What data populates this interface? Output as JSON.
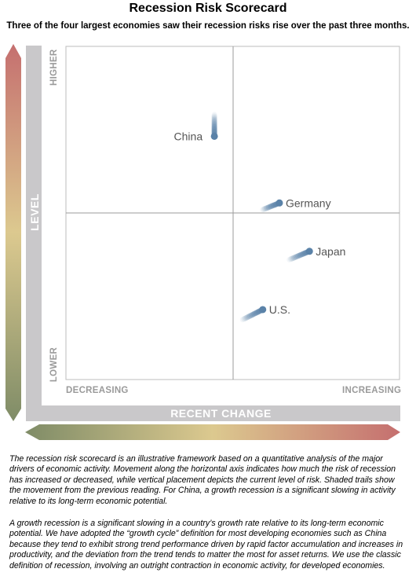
{
  "title": "Recession Risk Scorecard",
  "subtitle": "Three of the four largest economies saw their recession risks rise over the past three months.",
  "colors": {
    "frame": "#c9c8ca",
    "gridline": "#9b9b9b",
    "point": "#5a82a8",
    "tick_label": "#9a9a9a",
    "gradient_red": "#c56f6f",
    "gradient_tan": "#dcc98f",
    "gradient_green": "#7f8c67"
  },
  "chart_data": {
    "type": "scatter",
    "title": "Recession Risk Scorecard",
    "xlabel": "RECENT CHANGE",
    "ylabel": "LEVEL",
    "x_ticks": [
      "DECREASING",
      "INCREASING"
    ],
    "y_ticks": [
      "LOWER",
      "HIGHER"
    ],
    "xlim": [
      -1,
      1
    ],
    "ylim": [
      -1,
      1
    ],
    "grid": "quadrant lines at 0",
    "note": "Shaded trails show the movement from the previous reading.",
    "points": [
      {
        "label": "China",
        "x": -0.11,
        "y": 0.46,
        "trail_from": [
          -0.11,
          0.59
        ]
      },
      {
        "label": "Germany",
        "x": 0.28,
        "y": 0.06,
        "trail_from": [
          0.18,
          0.02
        ]
      },
      {
        "label": "Japan",
        "x": 0.46,
        "y": -0.23,
        "trail_from": [
          0.34,
          -0.28
        ]
      },
      {
        "label": "U.S.",
        "x": 0.18,
        "y": -0.58,
        "trail_from": [
          0.06,
          -0.64
        ]
      }
    ]
  },
  "footnotes": [
    "The recession risk scorecard is an illustrative framework based on a quantitative analysis of the major drivers of economic activity. Movement along the horizontal axis indicates how much the risk of recession has increased or decreased, while vertical placement depicts the current level of risk. Shaded trails show the movement from the previous reading. For China, a growth recession is a significant slowing in activity relative to its long-term economic potential.",
    "A growth recession is a significant slowing in a country’s growth rate relative to its long-term economic potential. We have adopted the “growth cycle” definition for most developing economies such as China because they tend to exhibit strong trend performance driven by rapid factor accumulation and increases in productivity, and the deviation from the trend tends to matter the most for asset returns. We use the classic definition of recession, involving an outright contraction in economic activity, for developed economies."
  ]
}
